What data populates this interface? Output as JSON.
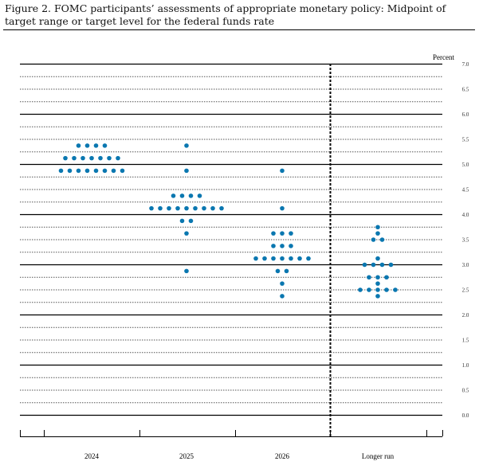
{
  "chart_data": {
    "type": "scatter",
    "title": "Figure 2.  FOMC participants’ assessments of appropriate monetary policy: Midpoint of target range or target level for the federal funds rate",
    "ylabel": "Percent",
    "ylim": [
      0,
      7
    ],
    "yticks": [
      "0.0",
      "0.5",
      "1.0",
      "1.5",
      "2.0",
      "2.5",
      "3.0",
      "3.5",
      "4.0",
      "4.5",
      "5.0",
      "5.5",
      "6.0",
      "6.5",
      "7.0"
    ],
    "categories": [
      "2024",
      "2025",
      "2026",
      "Longer run"
    ],
    "dot_color": "#0a77b0",
    "series": [
      {
        "name": "2024",
        "points": [
          {
            "y": 5.375,
            "count": 4
          },
          {
            "y": 5.125,
            "count": 7
          },
          {
            "y": 4.875,
            "count": 8
          }
        ]
      },
      {
        "name": "2025",
        "points": [
          {
            "y": 5.375,
            "count": 1
          },
          {
            "y": 4.875,
            "count": 1
          },
          {
            "y": 4.375,
            "count": 4
          },
          {
            "y": 4.125,
            "count": 9
          },
          {
            "y": 3.875,
            "count": 2
          },
          {
            "y": 3.625,
            "count": 1
          },
          {
            "y": 2.875,
            "count": 1
          }
        ]
      },
      {
        "name": "2026",
        "points": [
          {
            "y": 4.875,
            "count": 1
          },
          {
            "y": 4.125,
            "count": 1
          },
          {
            "y": 3.625,
            "count": 3
          },
          {
            "y": 3.375,
            "count": 3
          },
          {
            "y": 3.125,
            "count": 7
          },
          {
            "y": 2.875,
            "count": 2
          },
          {
            "y": 2.625,
            "count": 1
          },
          {
            "y": 2.375,
            "count": 1
          }
        ]
      },
      {
        "name": "Longer run",
        "points": [
          {
            "y": 3.75,
            "count": 1
          },
          {
            "y": 3.625,
            "count": 1
          },
          {
            "y": 3.5,
            "count": 2
          },
          {
            "y": 3.125,
            "count": 1
          },
          {
            "y": 3.0,
            "count": 4
          },
          {
            "y": 2.75,
            "count": 3
          },
          {
            "y": 2.625,
            "count": 1
          },
          {
            "y": 2.5,
            "count": 5
          },
          {
            "y": 2.375,
            "count": 1
          }
        ]
      }
    ]
  }
}
